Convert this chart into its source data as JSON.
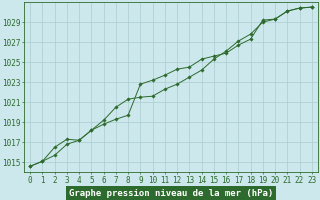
{
  "title": "Graphe pression niveau de la mer (hPa)",
  "x": [
    0,
    1,
    2,
    3,
    4,
    5,
    6,
    7,
    8,
    9,
    10,
    11,
    12,
    13,
    14,
    15,
    16,
    17,
    18,
    19,
    20,
    21,
    22,
    23
  ],
  "line1": [
    1014.6,
    1015.1,
    1015.7,
    1016.8,
    1017.2,
    1018.2,
    1018.8,
    1019.3,
    1019.7,
    1022.8,
    1023.2,
    1023.7,
    1024.3,
    1024.5,
    1025.3,
    1025.6,
    1025.9,
    1026.7,
    1027.3,
    1029.2,
    1029.3,
    1030.1,
    1030.4,
    1030.5
  ],
  "line2": [
    1014.6,
    1015.1,
    1016.5,
    1017.3,
    1017.2,
    1018.2,
    1019.2,
    1020.5,
    1021.3,
    1021.5,
    1021.6,
    1022.3,
    1022.8,
    1023.5,
    1024.2,
    1025.3,
    1026.1,
    1027.1,
    1027.8,
    1029.0,
    1029.3,
    1030.1,
    1030.4,
    1030.5
  ],
  "ylim": [
    1014.0,
    1031.0
  ],
  "yticks": [
    1015,
    1017,
    1019,
    1021,
    1023,
    1025,
    1027,
    1029
  ],
  "xlim": [
    -0.5,
    23.5
  ],
  "line_color": "#2d6a2d",
  "bg_color": "#cce8ec",
  "grid_color": "#aaccd0",
  "title_bg": "#2d6a2d",
  "title_color": "#ffffff",
  "title_fontsize": 6.5,
  "tick_fontsize": 5.5,
  "marker": "D",
  "marker_size": 1.8,
  "linewidth": 0.7
}
